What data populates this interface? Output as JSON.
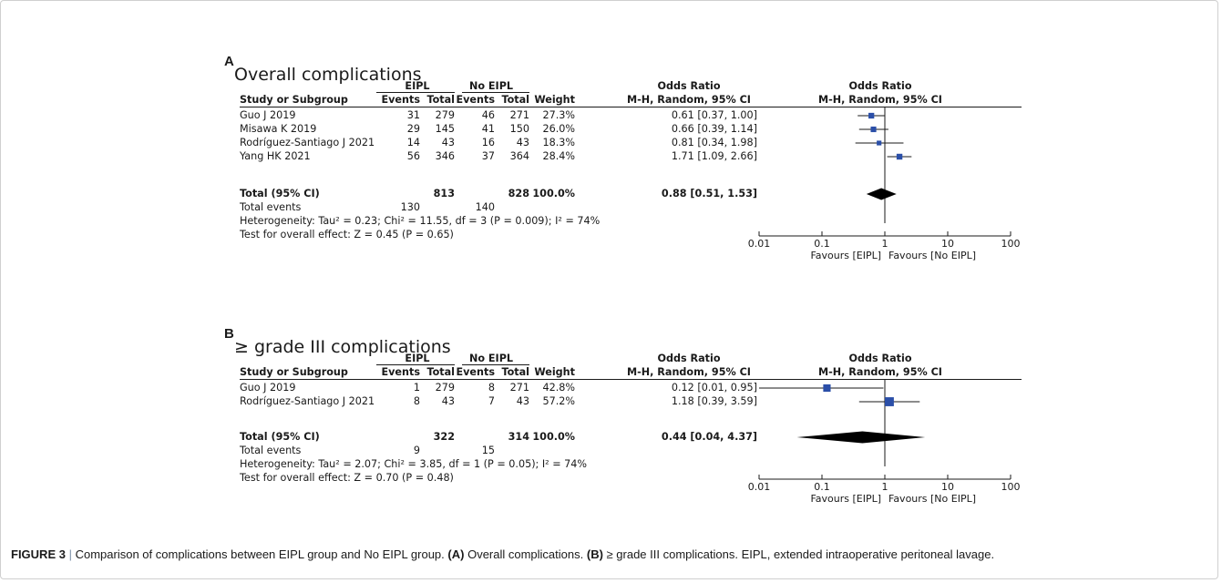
{
  "caption": {
    "figure_label": "FIGURE 3",
    "separator": "|",
    "intro": "Comparison of complications between EIPL group and No EIPL group.",
    "label_a": "(A)",
    "text_a": "Overall complications.",
    "label_b": "(B)",
    "text_b": "≥ grade III complications. EIPL, extended intraoperative peritoneal lavage."
  },
  "chart_data": [
    {
      "type": "forest",
      "panel": "A",
      "title": "Overall complications",
      "group1": "EIPL",
      "group2": "No EIPL",
      "columns": {
        "study": "Study or Subgroup",
        "events": "Events",
        "total": "Total",
        "weight": "Weight",
        "or_title": "Odds Ratio",
        "or_method": "M-H, Random, 95% CI"
      },
      "plot_title": "Odds Ratio",
      "plot_method": "M-H, Random, 95% CI",
      "studies": [
        {
          "name": "Guo J 2019",
          "e1": "31",
          "t1": "279",
          "e2": "46",
          "t2": "271",
          "weight": "27.3%",
          "or_text": "0.61 [0.37, 1.00]",
          "or": 0.61,
          "lo": 0.37,
          "hi": 1.0,
          "w": 27.3
        },
        {
          "name": "Misawa K 2019",
          "e1": "29",
          "t1": "145",
          "e2": "41",
          "t2": "150",
          "weight": "26.0%",
          "or_text": "0.66 [0.39, 1.14]",
          "or": 0.66,
          "lo": 0.39,
          "hi": 1.14,
          "w": 26.0
        },
        {
          "name": "Rodríguez-Santiago J 2021",
          "e1": "14",
          "t1": "43",
          "e2": "16",
          "t2": "43",
          "weight": "18.3%",
          "or_text": "0.81 [0.34, 1.98]",
          "or": 0.81,
          "lo": 0.34,
          "hi": 1.98,
          "w": 18.3
        },
        {
          "name": "Yang HK 2021",
          "e1": "56",
          "t1": "346",
          "e2": "37",
          "t2": "364",
          "weight": "28.4%",
          "or_text": "1.71 [1.09, 2.66]",
          "or": 1.71,
          "lo": 1.09,
          "hi": 2.66,
          "w": 28.4
        }
      ],
      "total": {
        "label": "Total (95% CI)",
        "t1": "813",
        "t2": "828",
        "weight": "100.0%",
        "or_text": "0.88 [0.51, 1.53]",
        "or": 0.88,
        "lo": 0.51,
        "hi": 1.53
      },
      "total_events": {
        "label": "Total events",
        "e1": "130",
        "e2": "140"
      },
      "heterogeneity": "Heterogeneity: Tau² = 0.23; Chi² = 11.55, df = 3 (P = 0.009); I² = 74%",
      "overall_effect": "Test for overall effect: Z = 0.45 (P = 0.65)",
      "x_scale": "log",
      "xlim": [
        0.01,
        100
      ],
      "x_ticks": [
        "0.01",
        "0.1",
        "1",
        "10",
        "100"
      ],
      "favours_left": "Favours [EIPL]",
      "favours_right": "Favours [No EIPL]"
    },
    {
      "type": "forest",
      "panel": "B",
      "title": "≥ grade III complications",
      "group1": "EIPL",
      "group2": "No EIPL",
      "columns": {
        "study": "Study or Subgroup",
        "events": "Events",
        "total": "Total",
        "weight": "Weight",
        "or_title": "Odds Ratio",
        "or_method": "M-H, Random, 95% CI"
      },
      "plot_title": "Odds Ratio",
      "plot_method": "M-H, Random, 95% CI",
      "studies": [
        {
          "name": "Guo J 2019",
          "e1": "1",
          "t1": "279",
          "e2": "8",
          "t2": "271",
          "weight": "42.8%",
          "or_text": "0.12 [0.01, 0.95]",
          "or": 0.12,
          "lo": 0.01,
          "hi": 0.95,
          "w": 42.8
        },
        {
          "name": "Rodríguez-Santiago J 2021",
          "e1": "8",
          "t1": "43",
          "e2": "7",
          "t2": "43",
          "weight": "57.2%",
          "or_text": "1.18 [0.39, 3.59]",
          "or": 1.18,
          "lo": 0.39,
          "hi": 3.59,
          "w": 57.2
        }
      ],
      "total": {
        "label": "Total (95% CI)",
        "t1": "322",
        "t2": "314",
        "weight": "100.0%",
        "or_text": "0.44 [0.04, 4.37]",
        "or": 0.44,
        "lo": 0.04,
        "hi": 4.37
      },
      "total_events": {
        "label": "Total events",
        "e1": "9",
        "e2": "15"
      },
      "heterogeneity": "Heterogeneity: Tau² = 2.07; Chi² = 3.85, df = 1 (P = 0.05); I² = 74%",
      "overall_effect": "Test for overall effect: Z = 0.70 (P = 0.48)",
      "x_scale": "log",
      "xlim": [
        0.01,
        100
      ],
      "x_ticks": [
        "0.01",
        "0.1",
        "1",
        "10",
        "100"
      ],
      "favours_left": "Favours [EIPL]",
      "favours_right": "Favours [No EIPL]"
    }
  ],
  "colors": {
    "marker": "#2b4fa8",
    "diamond": "#000000",
    "text": "#1a1a1a"
  }
}
